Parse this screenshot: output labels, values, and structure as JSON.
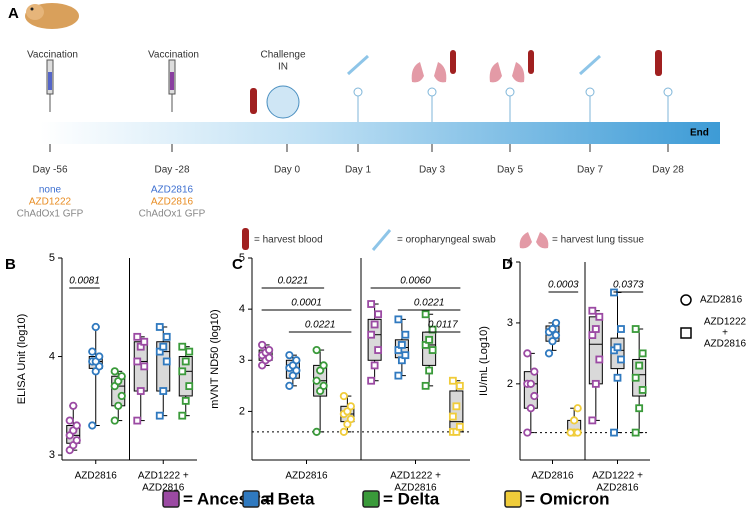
{
  "panel_a": {
    "letter": "A",
    "vaccination": [
      "Vaccination",
      "Vaccination"
    ],
    "challenge": [
      "Challenge",
      "IN"
    ],
    "end": "End",
    "days": [
      "Day -56",
      "Day -28",
      "Day 0",
      "Day 1",
      "Day 3",
      "Day 5",
      "Day 7",
      "Day 28"
    ],
    "groups": [
      [
        "none",
        "AZD1222",
        "ChAdOx1 GFP"
      ],
      [
        "AZD2816",
        "AZD2816",
        "ChAdOx1 GFP"
      ]
    ],
    "icon_legend": [
      "= harvest blood",
      "= oropharyngeal swab",
      "= harvest lung tissue"
    ]
  },
  "chart_data": [
    {
      "type": "box",
      "letter": "B",
      "ylabel": "ELISA Unit (log10)",
      "ylim": [
        2.95,
        5
      ],
      "yticks": [
        3,
        4,
        5
      ],
      "groups": [
        [
          "AZD2816"
        ],
        [
          "AZD1222 +",
          "AZD2816"
        ]
      ],
      "series": [
        {
          "group": 0,
          "color": "#9b4aa3",
          "box": [
            3.05,
            3.12,
            3.2,
            3.3,
            3.5
          ],
          "points": [
            3.05,
            3.1,
            3.15,
            3.2,
            3.25,
            3.3,
            3.35,
            3.5
          ]
        },
        {
          "group": 0,
          "color": "#2f79bf",
          "box": [
            3.3,
            3.88,
            3.95,
            4.0,
            4.3
          ],
          "points": [
            3.3,
            3.85,
            3.9,
            3.95,
            3.95,
            4.0,
            4.05,
            4.3
          ]
        },
        {
          "group": 0,
          "color": "#3a9a3a",
          "box": [
            3.35,
            3.5,
            3.7,
            3.8,
            3.85
          ],
          "points": [
            3.35,
            3.5,
            3.6,
            3.7,
            3.75,
            3.8,
            3.85
          ]
        },
        {
          "group": 1,
          "color": "#9b4aa3",
          "box": [
            3.35,
            3.65,
            3.95,
            4.15,
            4.2
          ],
          "points": [
            3.35,
            3.65,
            3.9,
            3.95,
            4.1,
            4.15,
            4.2
          ]
        },
        {
          "group": 1,
          "color": "#2f79bf",
          "box": [
            3.4,
            3.65,
            4.05,
            4.15,
            4.3
          ],
          "points": [
            3.4,
            3.65,
            3.95,
            4.05,
            4.1,
            4.2,
            4.3
          ]
        },
        {
          "group": 1,
          "color": "#3a9a3a",
          "box": [
            3.4,
            3.6,
            3.85,
            4.0,
            4.1
          ],
          "points": [
            3.4,
            3.55,
            3.7,
            3.85,
            3.95,
            4.05,
            4.1
          ]
        }
      ],
      "brackets": [
        {
          "label": "0.0081",
          "series": [
            0,
            1
          ]
        }
      ]
    },
    {
      "type": "box",
      "letter": "C",
      "ylabel": "mVNT ND50 (log10)",
      "ylim": [
        1.05,
        5
      ],
      "yticks": [
        2,
        3,
        4,
        5
      ],
      "reference_line": 1.6,
      "groups": [
        [
          "AZD2816"
        ],
        [
          "AZD1222 +",
          "AZD2816"
        ]
      ],
      "series": [
        {
          "group": 0,
          "color": "#9b4aa3",
          "box": [
            2.9,
            3.0,
            3.1,
            3.2,
            3.3
          ],
          "points": [
            2.9,
            3.0,
            3.05,
            3.1,
            3.15,
            3.2,
            3.3
          ]
        },
        {
          "group": 0,
          "color": "#2f79bf",
          "box": [
            2.5,
            2.65,
            2.85,
            3.0,
            3.1
          ],
          "points": [
            2.5,
            2.7,
            2.8,
            2.85,
            2.9,
            3.0,
            3.1
          ]
        },
        {
          "group": 0,
          "color": "#3a9a3a",
          "box": [
            1.6,
            2.3,
            2.6,
            2.9,
            3.2
          ],
          "points": [
            1.6,
            2.4,
            2.5,
            2.6,
            2.8,
            2.9,
            3.2
          ]
        },
        {
          "group": 0,
          "color": "#f0cc3a",
          "box": [
            1.6,
            1.8,
            1.95,
            2.1,
            2.3
          ],
          "points": [
            1.6,
            1.75,
            1.85,
            1.95,
            2.0,
            2.1,
            2.3
          ]
        },
        {
          "group": 1,
          "color": "#9b4aa3",
          "box": [
            2.6,
            3.0,
            3.5,
            3.8,
            4.1
          ],
          "points": [
            2.6,
            2.9,
            3.2,
            3.5,
            3.7,
            3.9,
            4.1
          ]
        },
        {
          "group": 1,
          "color": "#2f79bf",
          "box": [
            2.7,
            3.05,
            3.25,
            3.4,
            3.8
          ],
          "points": [
            2.7,
            3.0,
            3.1,
            3.2,
            3.3,
            3.5,
            3.8
          ]
        },
        {
          "group": 1,
          "color": "#3a9a3a",
          "box": [
            2.5,
            2.9,
            3.3,
            3.55,
            3.9
          ],
          "points": [
            2.5,
            2.8,
            3.2,
            3.3,
            3.4,
            3.6,
            3.9
          ]
        },
        {
          "group": 1,
          "color": "#f0cc3a",
          "box": [
            1.6,
            1.6,
            1.8,
            2.4,
            2.6
          ],
          "points": [
            1.6,
            1.6,
            1.7,
            1.9,
            2.1,
            2.5,
            2.6
          ]
        }
      ],
      "brackets": [
        {
          "label": "0.0221",
          "series": [
            0,
            2
          ]
        },
        {
          "label": "0.0001",
          "series": [
            0,
            3
          ]
        },
        {
          "label": "0.0221",
          "series": [
            1,
            3
          ]
        },
        {
          "label": "0.0060",
          "series": [
            4,
            7
          ]
        },
        {
          "label": "0.0221",
          "series": [
            5,
            7
          ]
        },
        {
          "label": "0.0117",
          "series": [
            6,
            7
          ]
        }
      ]
    },
    {
      "type": "box",
      "letter": "D",
      "ylabel": "IU/mL (Log10)",
      "ylim": [
        0.75,
        4
      ],
      "yticks": [
        2,
        3,
        4
      ],
      "reference_line": 1.2,
      "groups": [
        [
          "AZD2816"
        ],
        [
          "AZD1222 +",
          "AZD2816"
        ]
      ],
      "series": [
        {
          "group": 0,
          "color": "#9b4aa3",
          "box": [
            1.2,
            1.6,
            2.0,
            2.2,
            2.5
          ],
          "points": [
            1.2,
            1.6,
            1.8,
            2.0,
            2.0,
            2.2,
            2.5
          ]
        },
        {
          "group": 0,
          "color": "#2f79bf",
          "box": [
            2.55,
            2.7,
            2.85,
            2.95,
            3.0
          ],
          "points": [
            2.5,
            2.7,
            2.8,
            2.85,
            2.9,
            3.0
          ]
        },
        {
          "group": 0,
          "color": "#f0cc3a",
          "box": [
            1.2,
            1.2,
            1.2,
            1.4,
            1.6
          ],
          "points": [
            1.2,
            1.2,
            1.2,
            1.2,
            1.4,
            1.6
          ]
        },
        {
          "group": 1,
          "color": "#9b4aa3",
          "box": [
            1.4,
            2.0,
            2.65,
            3.1,
            3.2
          ],
          "points": [
            1.4,
            2.0,
            2.4,
            2.8,
            2.9,
            3.1,
            3.2
          ]
        },
        {
          "group": 1,
          "color": "#2f79bf",
          "box": [
            1.2,
            2.25,
            2.55,
            2.75,
            3.5
          ],
          "points": [
            1.2,
            2.1,
            2.4,
            2.55,
            2.6,
            2.9,
            3.5
          ]
        },
        {
          "group": 1,
          "color": "#3a9a3a",
          "box": [
            1.2,
            1.8,
            2.15,
            2.4,
            2.9
          ],
          "points": [
            1.2,
            1.6,
            1.9,
            2.1,
            2.3,
            2.5,
            2.9
          ]
        }
      ],
      "brackets": [
        {
          "label": "0.0003",
          "series": [
            1,
            2
          ]
        },
        {
          "label": "0.0373",
          "series": [
            4,
            5
          ]
        }
      ],
      "shape_legend": [
        [
          "AZD2816"
        ],
        [
          "AZD1222",
          "+",
          "AZD2816"
        ]
      ]
    }
  ],
  "legend": [
    {
      "label": "= Ancestral",
      "color": "#9b4aa3"
    },
    {
      "label": "= Beta",
      "color": "#2f79bf"
    },
    {
      "label": "= Delta",
      "color": "#3a9a3a"
    },
    {
      "label": "= Omicron",
      "color": "#f0cc3a"
    }
  ]
}
